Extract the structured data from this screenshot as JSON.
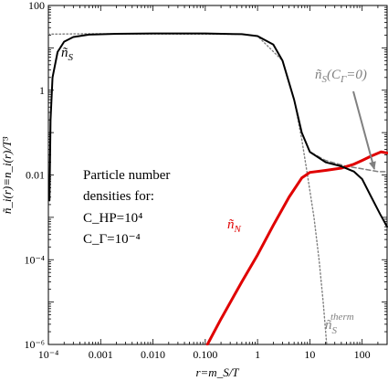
{
  "chart_data": {
    "type": "line",
    "x_scale": "log",
    "y_scale": "log",
    "xlim": [
      0.0001,
      300
    ],
    "ylim": [
      1e-06,
      100
    ],
    "xlabel": "r=m_S/T",
    "ylabel": "ñ_i(r)≡n_i(r)/T³",
    "x_ticks": [
      {
        "value": 0.0001,
        "label": "10⁻⁴"
      },
      {
        "value": 0.001,
        "label": "0.001"
      },
      {
        "value": 0.01,
        "label": "0.010"
      },
      {
        "value": 0.1,
        "label": "0.100"
      },
      {
        "value": 1,
        "label": "1"
      },
      {
        "value": 10,
        "label": "10"
      },
      {
        "value": 100,
        "label": "100"
      }
    ],
    "y_ticks": [
      {
        "value": 1e-06,
        "label": "10⁻⁶"
      },
      {
        "value": 0.0001,
        "label": "10⁻⁴"
      },
      {
        "value": 0.01,
        "label": "0.01"
      },
      {
        "value": 1,
        "label": "1"
      },
      {
        "value": 100,
        "label": "100"
      }
    ],
    "grid": false,
    "annotation_lines": [
      "Particle number",
      "densities for:",
      "C_HP=10⁴",
      "C_Γ=10⁻⁴"
    ],
    "series": [
      {
        "name": "ñ_S",
        "color": "#000000",
        "style": "solid",
        "points": [
          [
            0.000105,
            0.0025
          ],
          [
            0.00011,
            0.2
          ],
          [
            0.00012,
            2.0
          ],
          [
            0.00015,
            8.0
          ],
          [
            0.0002,
            14.0
          ],
          [
            0.0003,
            18.0
          ],
          [
            0.0006,
            20.5
          ],
          [
            0.002,
            21.5
          ],
          [
            0.01,
            21.8
          ],
          [
            0.1,
            21.8
          ],
          [
            0.5,
            21.0
          ],
          [
            1,
            19.0
          ],
          [
            2,
            12.0
          ],
          [
            3,
            5.0
          ],
          [
            5,
            0.6
          ],
          [
            7,
            0.1
          ],
          [
            10,
            0.035
          ],
          [
            20,
            0.02
          ],
          [
            40,
            0.016
          ],
          [
            70,
            0.012
          ],
          [
            100,
            0.008
          ],
          [
            150,
            0.003
          ],
          [
            220,
            0.0012
          ],
          [
            300,
            0.0006
          ]
        ]
      },
      {
        "name": "ñ_N",
        "color": "#e00000",
        "style": "solid",
        "points": [
          [
            0.11,
            1e-06
          ],
          [
            0.2,
            4e-06
          ],
          [
            0.5,
            3e-05
          ],
          [
            1,
            0.00013
          ],
          [
            2,
            0.00065
          ],
          [
            4,
            0.003
          ],
          [
            7,
            0.0085
          ],
          [
            10,
            0.0115
          ],
          [
            20,
            0.0128
          ],
          [
            40,
            0.0145
          ],
          [
            70,
            0.018
          ],
          [
            100,
            0.022
          ],
          [
            150,
            0.028
          ],
          [
            230,
            0.035
          ],
          [
            300,
            0.033
          ]
        ]
      },
      {
        "name": "ñ_S(C_Γ=0)",
        "color": "#808080",
        "style": "dashed",
        "points": [
          [
            7,
            0.1
          ],
          [
            10,
            0.035
          ],
          [
            20,
            0.022
          ],
          [
            50,
            0.016
          ],
          [
            100,
            0.014
          ],
          [
            200,
            0.012
          ],
          [
            300,
            0.012
          ]
        ]
      },
      {
        "name": "ñ_S^therm",
        "color": "#808080",
        "style": "dotted",
        "points": [
          [
            0.0001,
            21.0
          ],
          [
            0.0005,
            21.5
          ],
          [
            0.5,
            21.0
          ],
          [
            1,
            19.0
          ],
          [
            3,
            5.0
          ],
          [
            5,
            0.6
          ],
          [
            7,
            0.07
          ],
          [
            9,
            0.01
          ],
          [
            12,
            0.001
          ],
          [
            15,
            0.0001
          ],
          [
            18,
            1e-05
          ],
          [
            21,
            1e-06
          ]
        ]
      }
    ],
    "labels": {
      "n_S": {
        "base": "ñ",
        "sub": "S"
      },
      "n_N": {
        "base": "ñ",
        "sub": "N"
      },
      "n_S_CG0": {
        "base": "ñ",
        "sub": "S",
        "tail": "(C",
        "tail_sub": "Γ",
        "tail_end": "=0)"
      },
      "n_S_therm": {
        "base": "ñ",
        "sub": "S",
        "sup": "therm"
      }
    }
  }
}
